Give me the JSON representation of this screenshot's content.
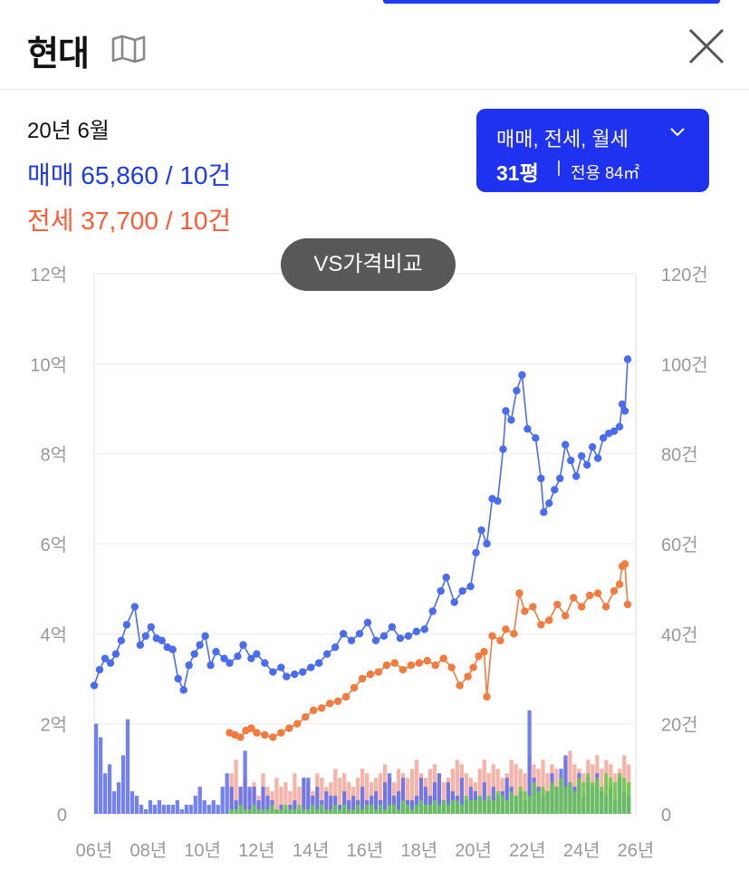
{
  "header": {
    "title": "현대",
    "map_icon": "map-icon",
    "close_icon": "close-icon"
  },
  "summary": {
    "period": "20년 6월",
    "sale_text": "매매 65,860 / 10건",
    "jeonse_text": "전세 37,700 / 10건"
  },
  "filter": {
    "types_label": "매매, 전세, 월세",
    "size_label": "31평",
    "area_label": "전용 84㎡",
    "icon": "chevron-down-icon"
  },
  "vs_button": {
    "label": "VS가격비교"
  },
  "colors": {
    "sale": "#4a6cf0",
    "jeonse": "#f47a3d",
    "sale_volume": "#5b6cf0",
    "jeonse_volume": "#f39a8a",
    "monthly_volume": "#66c84a",
    "accent": "#1f32f0"
  },
  "chart_data": {
    "type": "line",
    "title": "",
    "xlabel": "",
    "ylabel": "",
    "grid": true,
    "ylim": [
      0,
      12
    ],
    "y2lim": [
      0,
      120
    ],
    "xlim": [
      2006,
      2026
    ],
    "x_ticks": [
      "06년",
      "08년",
      "10년",
      "12년",
      "14년",
      "16년",
      "18년",
      "20년",
      "22년",
      "24년",
      "26년"
    ],
    "y_ticks": [
      "0",
      "2억",
      "4억",
      "6억",
      "8억",
      "10억",
      "12억"
    ],
    "y2_ticks": [
      "0",
      "20건",
      "40건",
      "60건",
      "80건",
      "100건",
      "120건"
    ],
    "series": [
      {
        "key": "sale_price",
        "unit": "억",
        "points": [
          [
            2006.0,
            2.85
          ],
          [
            2006.2,
            3.2
          ],
          [
            2006.4,
            3.45
          ],
          [
            2006.6,
            3.35
          ],
          [
            2006.8,
            3.55
          ],
          [
            2007.0,
            3.85
          ],
          [
            2007.2,
            4.2
          ],
          [
            2007.5,
            4.6
          ],
          [
            2007.7,
            3.75
          ],
          [
            2007.9,
            3.95
          ],
          [
            2008.1,
            4.15
          ],
          [
            2008.3,
            3.9
          ],
          [
            2008.5,
            3.85
          ],
          [
            2008.7,
            3.7
          ],
          [
            2008.9,
            3.65
          ],
          [
            2009.1,
            3.0
          ],
          [
            2009.3,
            2.75
          ],
          [
            2009.5,
            3.3
          ],
          [
            2009.7,
            3.55
          ],
          [
            2009.9,
            3.75
          ],
          [
            2010.1,
            3.95
          ],
          [
            2010.3,
            3.3
          ],
          [
            2010.5,
            3.6
          ],
          [
            2010.8,
            3.45
          ],
          [
            2011.0,
            3.35
          ],
          [
            2011.3,
            3.5
          ],
          [
            2011.5,
            3.75
          ],
          [
            2011.8,
            3.45
          ],
          [
            2012.0,
            3.55
          ],
          [
            2012.3,
            3.35
          ],
          [
            2012.6,
            3.15
          ],
          [
            2012.9,
            3.25
          ],
          [
            2013.1,
            3.05
          ],
          [
            2013.4,
            3.1
          ],
          [
            2013.7,
            3.15
          ],
          [
            2014.0,
            3.25
          ],
          [
            2014.3,
            3.35
          ],
          [
            2014.6,
            3.55
          ],
          [
            2014.9,
            3.7
          ],
          [
            2015.2,
            4.0
          ],
          [
            2015.5,
            3.85
          ],
          [
            2015.8,
            4.0
          ],
          [
            2016.1,
            4.25
          ],
          [
            2016.4,
            3.85
          ],
          [
            2016.7,
            3.95
          ],
          [
            2017.0,
            4.15
          ],
          [
            2017.3,
            3.9
          ],
          [
            2017.6,
            3.95
          ],
          [
            2017.9,
            4.05
          ],
          [
            2018.2,
            4.1
          ],
          [
            2018.5,
            4.5
          ],
          [
            2018.8,
            4.95
          ],
          [
            2019.0,
            5.25
          ],
          [
            2019.3,
            4.7
          ],
          [
            2019.6,
            4.95
          ],
          [
            2019.9,
            5.05
          ],
          [
            2020.1,
            5.8
          ],
          [
            2020.3,
            6.3
          ],
          [
            2020.5,
            6.0
          ],
          [
            2020.7,
            7.0
          ],
          [
            2020.9,
            6.95
          ],
          [
            2021.1,
            8.1
          ],
          [
            2021.2,
            8.95
          ],
          [
            2021.4,
            8.75
          ],
          [
            2021.6,
            9.4
          ],
          [
            2021.8,
            9.75
          ],
          [
            2022.0,
            8.55
          ],
          [
            2022.3,
            8.35
          ],
          [
            2022.5,
            7.45
          ],
          [
            2022.6,
            6.7
          ],
          [
            2022.8,
            6.9
          ],
          [
            2023.0,
            7.2
          ],
          [
            2023.2,
            7.45
          ],
          [
            2023.4,
            8.2
          ],
          [
            2023.6,
            7.85
          ],
          [
            2023.8,
            7.5
          ],
          [
            2024.0,
            7.95
          ],
          [
            2024.2,
            7.75
          ],
          [
            2024.4,
            8.15
          ],
          [
            2024.6,
            7.9
          ],
          [
            2024.8,
            8.35
          ],
          [
            2025.0,
            8.45
          ],
          [
            2025.2,
            8.5
          ],
          [
            2025.4,
            8.6
          ],
          [
            2025.5,
            9.1
          ],
          [
            2025.6,
            8.95
          ],
          [
            2025.7,
            10.1
          ]
        ]
      },
      {
        "key": "jeonse_price",
        "unit": "억",
        "points": [
          [
            2011.0,
            1.8
          ],
          [
            2011.2,
            1.75
          ],
          [
            2011.4,
            1.7
          ],
          [
            2011.6,
            1.85
          ],
          [
            2011.8,
            1.9
          ],
          [
            2012.0,
            1.8
          ],
          [
            2012.3,
            1.75
          ],
          [
            2012.6,
            1.7
          ],
          [
            2012.9,
            1.8
          ],
          [
            2013.2,
            1.9
          ],
          [
            2013.5,
            2.0
          ],
          [
            2013.8,
            2.15
          ],
          [
            2014.1,
            2.3
          ],
          [
            2014.4,
            2.35
          ],
          [
            2014.7,
            2.45
          ],
          [
            2015.0,
            2.5
          ],
          [
            2015.3,
            2.6
          ],
          [
            2015.6,
            2.8
          ],
          [
            2015.9,
            3.0
          ],
          [
            2016.2,
            3.1
          ],
          [
            2016.5,
            3.15
          ],
          [
            2016.8,
            3.3
          ],
          [
            2017.1,
            3.35
          ],
          [
            2017.4,
            3.2
          ],
          [
            2017.7,
            3.3
          ],
          [
            2018.0,
            3.35
          ],
          [
            2018.3,
            3.4
          ],
          [
            2018.6,
            3.3
          ],
          [
            2018.9,
            3.45
          ],
          [
            2019.2,
            3.25
          ],
          [
            2019.5,
            2.85
          ],
          [
            2019.8,
            3.05
          ],
          [
            2020.0,
            3.25
          ],
          [
            2020.2,
            3.5
          ],
          [
            2020.4,
            3.6
          ],
          [
            2020.5,
            2.6
          ],
          [
            2020.7,
            3.95
          ],
          [
            2021.0,
            3.85
          ],
          [
            2021.2,
            4.1
          ],
          [
            2021.5,
            4.0
          ],
          [
            2021.7,
            4.9
          ],
          [
            2021.9,
            4.5
          ],
          [
            2022.2,
            4.6
          ],
          [
            2022.5,
            4.2
          ],
          [
            2022.8,
            4.3
          ],
          [
            2023.1,
            4.65
          ],
          [
            2023.4,
            4.4
          ],
          [
            2023.7,
            4.8
          ],
          [
            2024.0,
            4.6
          ],
          [
            2024.3,
            4.85
          ],
          [
            2024.6,
            4.9
          ],
          [
            2024.9,
            4.6
          ],
          [
            2025.2,
            4.95
          ],
          [
            2025.4,
            5.1
          ],
          [
            2025.5,
            5.5
          ],
          [
            2025.6,
            5.55
          ],
          [
            2025.7,
            4.65
          ]
        ]
      }
    ],
    "volume_series": [
      {
        "key": "sale_volume",
        "unit": "건",
        "x_start": 2006.0,
        "step": 0.1667,
        "values": [
          20,
          17,
          9,
          11,
          5,
          7,
          13,
          21,
          5,
          4,
          2,
          1,
          3,
          2,
          3,
          2,
          2,
          2,
          3,
          1,
          2,
          2,
          4,
          6,
          3,
          2,
          3,
          2,
          6,
          9,
          6,
          3,
          6,
          14,
          6,
          6,
          3,
          6,
          4,
          3,
          1,
          2,
          1,
          2,
          3,
          1,
          8,
          8,
          4,
          6,
          3,
          5,
          4,
          4,
          2,
          5,
          3,
          4,
          3,
          6,
          3,
          4,
          5,
          3,
          7,
          9,
          4,
          5,
          8,
          3,
          3,
          4,
          8,
          6,
          4,
          7,
          9,
          3,
          7,
          5,
          4,
          8,
          3,
          6,
          5,
          4,
          7,
          3,
          6,
          4,
          5,
          8,
          6,
          4,
          5,
          3,
          23,
          8,
          6,
          4,
          5,
          9,
          6,
          10,
          13,
          7,
          6,
          9,
          4,
          8,
          6,
          9,
          5,
          4,
          6,
          3,
          8,
          5,
          4,
          6,
          3,
          5,
          4,
          6,
          7,
          3,
          8,
          6,
          5,
          7,
          4,
          6,
          8,
          9,
          5,
          7
        ]
      },
      {
        "key": "jeonse_volume",
        "unit": "건",
        "x_start": 2011.0,
        "step": 0.1667,
        "values": [
          9,
          12,
          6,
          8,
          5,
          7,
          4,
          9,
          6,
          5,
          8,
          6,
          7,
          5,
          9,
          6,
          8,
          7,
          5,
          9,
          8,
          6,
          7,
          10,
          8,
          9,
          7,
          6,
          8,
          10,
          9,
          7,
          8,
          9,
          11,
          8,
          7,
          10,
          9,
          8,
          10,
          12,
          9,
          8,
          10,
          11,
          9,
          7,
          8,
          10,
          12,
          11,
          9,
          8,
          7,
          10,
          12,
          9,
          11,
          10,
          8,
          9,
          12,
          11,
          10,
          9,
          13,
          11,
          10,
          12,
          9,
          11,
          10,
          8,
          12,
          14,
          11,
          10,
          9,
          12,
          11,
          13,
          10,
          12,
          11,
          9,
          10,
          13,
          11,
          12,
          14,
          10,
          12,
          11,
          13
        ]
      },
      {
        "key": "monthly_volume",
        "unit": "건",
        "x_start": 2011.0,
        "step": 0.1667,
        "values": [
          1,
          1,
          2,
          1,
          1,
          2,
          1,
          1,
          1,
          2,
          1,
          1,
          2,
          1,
          1,
          2,
          1,
          1,
          2,
          1,
          2,
          1,
          1,
          2,
          1,
          2,
          1,
          1,
          2,
          1,
          2,
          2,
          1,
          2,
          1,
          2,
          2,
          1,
          3,
          2,
          1,
          2,
          3,
          2,
          2,
          3,
          2,
          3,
          2,
          3,
          3,
          2,
          4,
          3,
          3,
          4,
          3,
          4,
          3,
          5,
          4,
          3,
          5,
          4,
          6,
          5,
          4,
          7,
          5,
          6,
          5,
          7,
          6,
          8,
          6,
          7,
          5,
          8,
          7,
          9,
          7,
          8,
          6,
          9,
          8,
          7,
          9,
          8,
          7,
          9,
          8,
          9,
          7,
          8,
          9
        ]
      }
    ]
  }
}
